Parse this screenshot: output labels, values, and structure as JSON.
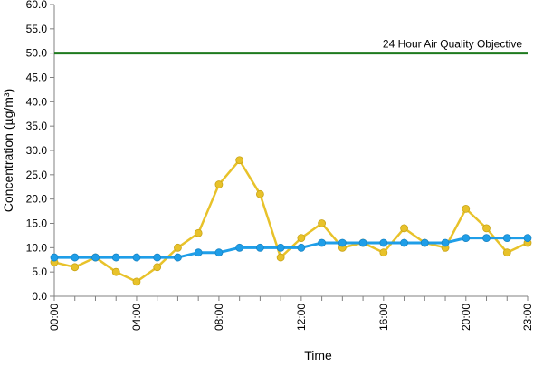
{
  "chart_data": {
    "type": "line",
    "title": "",
    "xlabel": "Time",
    "ylabel": "Concentration (µg/m³)",
    "x": [
      "00:00",
      "01:00",
      "02:00",
      "03:00",
      "04:00",
      "05:00",
      "06:00",
      "07:00",
      "08:00",
      "09:00",
      "10:00",
      "11:00",
      "12:00",
      "13:00",
      "14:00",
      "15:00",
      "16:00",
      "17:00",
      "18:00",
      "19:00",
      "20:00",
      "21:00",
      "22:00",
      "23:00"
    ],
    "x_tick_labels": [
      "00:00",
      "04:00",
      "08:00",
      "12:00",
      "16:00",
      "20:00",
      "23:00"
    ],
    "x_tick_positions": [
      0,
      4,
      8,
      12,
      16,
      20,
      23
    ],
    "ylim": [
      0,
      60
    ],
    "y_ticks": [
      "0.0",
      "5.0",
      "10.0",
      "15.0",
      "20.0",
      "25.0",
      "30.0",
      "35.0",
      "40.0",
      "45.0",
      "50.0",
      "55.0",
      "60.0"
    ],
    "grid": false,
    "legend": "none",
    "series": [
      {
        "values": [
          7,
          6,
          8,
          5,
          3,
          6,
          10,
          13,
          23,
          28,
          21,
          8,
          12,
          15,
          10,
          11,
          9,
          14,
          11,
          10,
          18,
          14,
          9,
          11
        ],
        "color": "#e8c22a"
      },
      {
        "values": [
          8,
          8,
          8,
          8,
          8,
          8,
          8,
          9,
          9,
          10,
          10,
          10,
          10,
          11,
          11,
          11,
          11,
          11,
          11,
          11,
          12,
          12,
          12,
          12
        ],
        "color": "#1f9ee8"
      }
    ],
    "reference_line": {
      "value": 50,
      "label": "24 Hour Air Quality Objective",
      "color": "#1e7a1e"
    }
  }
}
